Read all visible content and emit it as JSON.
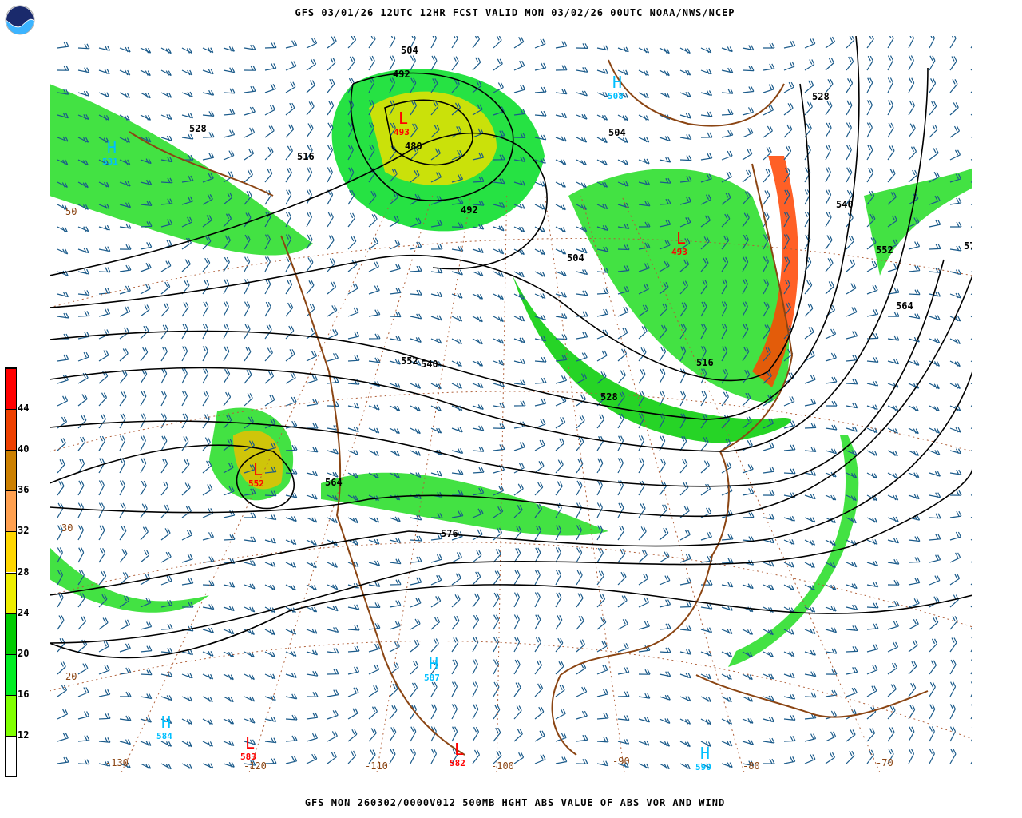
{
  "header": {
    "title": "GFS 03/01/26 12UTC 12HR FCST VALID MON 03/02/26 00UTC NOAA/NWS/NCEP",
    "logo_text": "NOAA"
  },
  "footer": {
    "caption": "GFS MON 260302/0000V012 500MB HGHT ABS VALUE OF ABS VOR AND WIND"
  },
  "colorbar": {
    "ticks": [
      "12",
      "16",
      "20",
      "24",
      "28",
      "32",
      "36",
      "40",
      "44"
    ],
    "colors": [
      "#ffffff",
      "#80ff00",
      "#00ee22",
      "#00cc00",
      "#eeee00",
      "#ffd700",
      "#ffa050",
      "#cc8000",
      "#ee4000",
      "#ff0000"
    ]
  },
  "colors": {
    "coastline": "#8b4513",
    "contour": "#000000",
    "barb": "#1a5a8a",
    "high_marker": "#00bfff",
    "low_marker": "#ff0000"
  },
  "map": {
    "contour_labels": [
      {
        "text": "504"
      },
      {
        "text": "492"
      },
      {
        "text": "480"
      },
      {
        "text": "516"
      },
      {
        "text": "528"
      },
      {
        "text": "492"
      },
      {
        "text": "504"
      },
      {
        "text": "504"
      },
      {
        "text": "528"
      },
      {
        "text": "540"
      },
      {
        "text": "552"
      },
      {
        "text": "564"
      },
      {
        "text": "540"
      },
      {
        "text": "552"
      },
      {
        "text": "516"
      },
      {
        "text": "528"
      },
      {
        "text": "564"
      },
      {
        "text": "576"
      },
      {
        "text": "57"
      }
    ],
    "pressure_centers": [
      {
        "type": "H",
        "value": "508"
      },
      {
        "type": "H",
        "value": "531"
      },
      {
        "type": "L",
        "value": "493"
      },
      {
        "type": "L",
        "value": "493"
      },
      {
        "type": "L",
        "value": "552"
      },
      {
        "type": "H",
        "value": "587"
      },
      {
        "type": "H",
        "value": "584"
      },
      {
        "type": "L",
        "value": "583"
      },
      {
        "type": "L",
        "value": "582"
      },
      {
        "type": "H",
        "value": "590"
      }
    ],
    "lon_labels": [
      "-130",
      "-120",
      "-110",
      "-100",
      "-90",
      "-80",
      "-70"
    ],
    "lat_labels": [
      "50",
      "30",
      "20"
    ]
  }
}
